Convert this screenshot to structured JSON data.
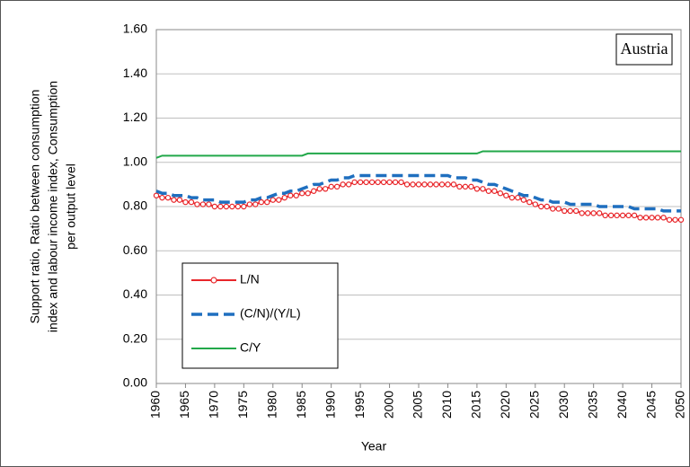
{
  "chart_data": {
    "type": "line",
    "ylabel": [
      "Support ratio, Ratio between consumption",
      "index and labour income index, Consumption",
      "per output level"
    ],
    "xlabel": "Year",
    "annotation": "Austria",
    "x": [
      1960,
      1961,
      1962,
      1963,
      1964,
      1965,
      1966,
      1967,
      1968,
      1969,
      1970,
      1971,
      1972,
      1973,
      1974,
      1975,
      1976,
      1977,
      1978,
      1979,
      1980,
      1981,
      1982,
      1983,
      1984,
      1985,
      1986,
      1987,
      1988,
      1989,
      1990,
      1991,
      1992,
      1993,
      1994,
      1995,
      1996,
      1997,
      1998,
      1999,
      2000,
      2001,
      2002,
      2003,
      2004,
      2005,
      2006,
      2007,
      2008,
      2009,
      2010,
      2011,
      2012,
      2013,
      2014,
      2015,
      2016,
      2017,
      2018,
      2019,
      2020,
      2021,
      2022,
      2023,
      2024,
      2025,
      2026,
      2027,
      2028,
      2029,
      2030,
      2031,
      2032,
      2033,
      2034,
      2035,
      2036,
      2037,
      2038,
      2039,
      2040,
      2041,
      2042,
      2043,
      2044,
      2045,
      2046,
      2047,
      2048,
      2049,
      2050
    ],
    "series": [
      {
        "name": "L/N",
        "color": "#e8262a",
        "marker": "circle",
        "style": "solid",
        "values": [
          0.85,
          0.84,
          0.84,
          0.83,
          0.83,
          0.82,
          0.82,
          0.81,
          0.81,
          0.81,
          0.8,
          0.8,
          0.8,
          0.8,
          0.8,
          0.8,
          0.81,
          0.81,
          0.82,
          0.82,
          0.83,
          0.83,
          0.84,
          0.85,
          0.85,
          0.86,
          0.86,
          0.87,
          0.88,
          0.88,
          0.89,
          0.89,
          0.9,
          0.9,
          0.91,
          0.91,
          0.91,
          0.91,
          0.91,
          0.91,
          0.91,
          0.91,
          0.91,
          0.9,
          0.9,
          0.9,
          0.9,
          0.9,
          0.9,
          0.9,
          0.9,
          0.9,
          0.89,
          0.89,
          0.89,
          0.88,
          0.88,
          0.87,
          0.87,
          0.86,
          0.85,
          0.84,
          0.84,
          0.83,
          0.82,
          0.81,
          0.8,
          0.8,
          0.79,
          0.79,
          0.78,
          0.78,
          0.78,
          0.77,
          0.77,
          0.77,
          0.77,
          0.76,
          0.76,
          0.76,
          0.76,
          0.76,
          0.76,
          0.75,
          0.75,
          0.75,
          0.75,
          0.75,
          0.74,
          0.74,
          0.74
        ]
      },
      {
        "name": "(C/N)/(Y/L)",
        "color": "#1f6fbf",
        "marker": "none",
        "style": "dashed",
        "values": [
          0.87,
          0.86,
          0.86,
          0.85,
          0.85,
          0.85,
          0.84,
          0.84,
          0.83,
          0.83,
          0.83,
          0.82,
          0.82,
          0.82,
          0.82,
          0.82,
          0.83,
          0.83,
          0.84,
          0.84,
          0.85,
          0.86,
          0.86,
          0.87,
          0.87,
          0.88,
          0.89,
          0.9,
          0.9,
          0.91,
          0.92,
          0.92,
          0.93,
          0.93,
          0.94,
          0.94,
          0.94,
          0.94,
          0.94,
          0.94,
          0.94,
          0.94,
          0.94,
          0.94,
          0.94,
          0.94,
          0.94,
          0.94,
          0.94,
          0.94,
          0.94,
          0.93,
          0.93,
          0.93,
          0.92,
          0.92,
          0.91,
          0.9,
          0.9,
          0.89,
          0.88,
          0.87,
          0.86,
          0.85,
          0.85,
          0.84,
          0.83,
          0.83,
          0.82,
          0.82,
          0.82,
          0.81,
          0.81,
          0.81,
          0.81,
          0.81,
          0.8,
          0.8,
          0.8,
          0.8,
          0.8,
          0.8,
          0.79,
          0.79,
          0.79,
          0.79,
          0.79,
          0.78,
          0.78,
          0.78,
          0.78
        ]
      },
      {
        "name": "C/Y",
        "color": "#22a84a",
        "marker": "none",
        "style": "solid",
        "values": [
          1.02,
          1.03,
          1.03,
          1.03,
          1.03,
          1.03,
          1.03,
          1.03,
          1.03,
          1.03,
          1.03,
          1.03,
          1.03,
          1.03,
          1.03,
          1.03,
          1.03,
          1.03,
          1.03,
          1.03,
          1.03,
          1.03,
          1.03,
          1.03,
          1.03,
          1.03,
          1.04,
          1.04,
          1.04,
          1.04,
          1.04,
          1.04,
          1.04,
          1.04,
          1.04,
          1.04,
          1.04,
          1.04,
          1.04,
          1.04,
          1.04,
          1.04,
          1.04,
          1.04,
          1.04,
          1.04,
          1.04,
          1.04,
          1.04,
          1.04,
          1.04,
          1.04,
          1.04,
          1.04,
          1.04,
          1.04,
          1.05,
          1.05,
          1.05,
          1.05,
          1.05,
          1.05,
          1.05,
          1.05,
          1.05,
          1.05,
          1.05,
          1.05,
          1.05,
          1.05,
          1.05,
          1.05,
          1.05,
          1.05,
          1.05,
          1.05,
          1.05,
          1.05,
          1.05,
          1.05,
          1.05,
          1.05,
          1.05,
          1.05,
          1.05,
          1.05,
          1.05,
          1.05,
          1.05,
          1.05,
          1.05
        ]
      }
    ],
    "xlim": [
      1960,
      2050
    ],
    "xticks": [
      1960,
      1965,
      1970,
      1975,
      1980,
      1985,
      1990,
      1995,
      2000,
      2005,
      2010,
      2015,
      2020,
      2025,
      2030,
      2035,
      2040,
      2045,
      2050
    ],
    "ylim": [
      0,
      1.6
    ],
    "yticks": [
      {
        "value": 0,
        "label": "0.00"
      },
      {
        "value": 0.2,
        "label": "0.20"
      },
      {
        "value": 0.4,
        "label": "0.40"
      },
      {
        "value": 0.6,
        "label": "0.60"
      },
      {
        "value": 0.8,
        "label": "0.80"
      },
      {
        "value": 1.0,
        "label": "1.00"
      },
      {
        "value": 1.2,
        "label": "1.20"
      },
      {
        "value": 1.4,
        "label": "1.40"
      },
      {
        "value": 1.6,
        "label": "1.60"
      }
    ],
    "grid": true,
    "legend": "lower-left"
  }
}
